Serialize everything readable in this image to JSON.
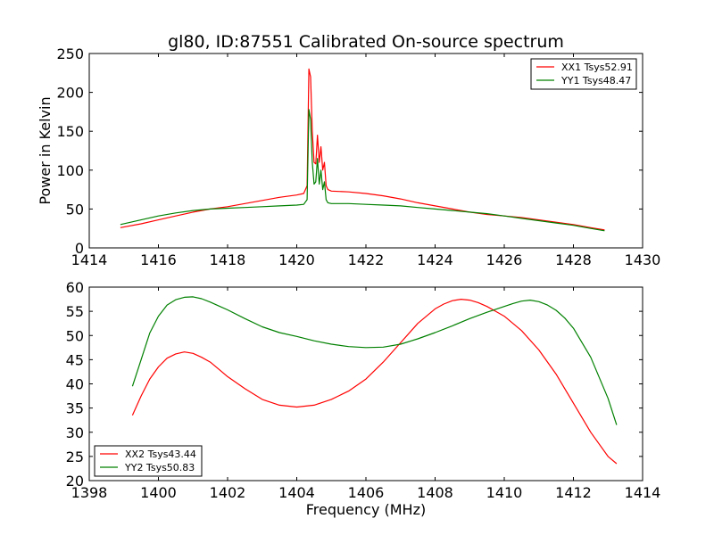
{
  "chart_data": [
    {
      "type": "line",
      "title": "gl80, ID:87551 Calibrated On-source spectrum",
      "xlabel": "",
      "ylabel": "Power in Kelvin",
      "xlim": [
        1414,
        1430
      ],
      "ylim": [
        0,
        250
      ],
      "xticks": [
        "1414",
        "1416",
        "1418",
        "1420",
        "1422",
        "1424",
        "1426",
        "1428",
        "1430"
      ],
      "yticks": [
        "0",
        "50",
        "100",
        "150",
        "200",
        "250"
      ],
      "grid": false,
      "legend_position": "top-right",
      "series": [
        {
          "name": "XX1 Tsys52.91",
          "color": "#ff0000",
          "x": [
            1414.9,
            1415.5,
            1416,
            1416.5,
            1417,
            1417.5,
            1418,
            1418.5,
            1419,
            1419.5,
            1420,
            1420.2,
            1420.3,
            1420.35,
            1420.4,
            1420.45,
            1420.5,
            1420.55,
            1420.6,
            1420.65,
            1420.7,
            1420.75,
            1420.8,
            1420.85,
            1420.9,
            1421,
            1421.5,
            1422,
            1422.5,
            1423,
            1423.5,
            1424,
            1424.5,
            1425,
            1425.5,
            1426,
            1426.5,
            1427,
            1427.5,
            1428,
            1428.5,
            1428.9
          ],
          "y": [
            26,
            31,
            36,
            41,
            46,
            50,
            53,
            57,
            61,
            65,
            68,
            70,
            80,
            230,
            220,
            150,
            110,
            108,
            145,
            110,
            130,
            100,
            110,
            80,
            75,
            73,
            72,
            70,
            67,
            63,
            58,
            54,
            50,
            46,
            43,
            41,
            39,
            36,
            33,
            30,
            26,
            23
          ]
        },
        {
          "name": "YY1 Tsys48.47",
          "color": "#008000",
          "x": [
            1414.9,
            1415.5,
            1416,
            1416.5,
            1417,
            1417.5,
            1418,
            1418.5,
            1419,
            1419.5,
            1420,
            1420.2,
            1420.3,
            1420.35,
            1420.4,
            1420.45,
            1420.5,
            1420.55,
            1420.6,
            1420.65,
            1420.7,
            1420.75,
            1420.8,
            1420.85,
            1420.9,
            1421,
            1421.5,
            1422,
            1422.5,
            1423,
            1423.5,
            1424,
            1424.5,
            1425,
            1425.5,
            1426,
            1426.5,
            1427,
            1427.5,
            1428,
            1428.5,
            1428.9
          ],
          "y": [
            30,
            36,
            41,
            45,
            48,
            50,
            51,
            52,
            53,
            54,
            55,
            56,
            62,
            178,
            165,
            110,
            82,
            85,
            115,
            82,
            100,
            75,
            85,
            62,
            58,
            57,
            57,
            56,
            55,
            54,
            52,
            50,
            48,
            46,
            44,
            41,
            38,
            35,
            32,
            29,
            25,
            22
          ]
        }
      ]
    },
    {
      "type": "line",
      "title": "",
      "xlabel": "Frequency (MHz)",
      "ylabel": "",
      "xlim": [
        1398,
        1414
      ],
      "ylim": [
        20,
        60
      ],
      "xticks": [
        "1398",
        "1400",
        "1402",
        "1404",
        "1406",
        "1408",
        "1410",
        "1412",
        "1414"
      ],
      "yticks": [
        "20",
        "25",
        "30",
        "35",
        "40",
        "45",
        "50",
        "55",
        "60"
      ],
      "grid": false,
      "legend_position": "bottom-left",
      "series": [
        {
          "name": "XX2 Tsys43.44",
          "color": "#ff0000",
          "x": [
            1399.25,
            1399.5,
            1399.75,
            1400,
            1400.25,
            1400.5,
            1400.75,
            1401,
            1401.25,
            1401.5,
            1401.75,
            1402,
            1402.5,
            1403,
            1403.5,
            1404,
            1404.5,
            1405,
            1405.5,
            1406,
            1406.5,
            1407,
            1407.5,
            1408,
            1408.25,
            1408.5,
            1408.75,
            1409,
            1409.25,
            1409.5,
            1409.75,
            1410,
            1410.5,
            1411,
            1411.5,
            1412,
            1412.5,
            1413,
            1413.25
          ],
          "y": [
            33.5,
            37.5,
            41,
            43.5,
            45.3,
            46.2,
            46.6,
            46.3,
            45.5,
            44.5,
            43,
            41.5,
            39,
            36.8,
            35.6,
            35.2,
            35.6,
            36.8,
            38.5,
            41,
            44.5,
            48.5,
            52.5,
            55.5,
            56.5,
            57.2,
            57.5,
            57.3,
            56.8,
            56,
            55,
            54,
            51,
            47,
            42,
            36,
            30,
            25,
            23.5
          ]
        },
        {
          "name": "YY2 Tsys50.83",
          "color": "#008000",
          "x": [
            1399.25,
            1399.5,
            1399.75,
            1400,
            1400.25,
            1400.5,
            1400.75,
            1401,
            1401.25,
            1401.5,
            1401.75,
            1402,
            1402.5,
            1403,
            1403.5,
            1404,
            1404.5,
            1405,
            1405.5,
            1406,
            1406.5,
            1407,
            1407.5,
            1408,
            1408.5,
            1409,
            1409.5,
            1410,
            1410.25,
            1410.5,
            1410.75,
            1411,
            1411.25,
            1411.5,
            1411.75,
            1412,
            1412.5,
            1413,
            1413.25
          ],
          "y": [
            39.5,
            45,
            50.5,
            54,
            56.3,
            57.4,
            57.9,
            58,
            57.6,
            56.9,
            56.1,
            55.3,
            53.5,
            51.8,
            50.6,
            49.8,
            48.9,
            48.2,
            47.7,
            47.5,
            47.6,
            48.2,
            49.3,
            50.6,
            52,
            53.5,
            54.8,
            56,
            56.6,
            57.1,
            57.3,
            57,
            56.3,
            55.2,
            53.6,
            51.5,
            45.5,
            37,
            31.5
          ]
        }
      ]
    }
  ]
}
